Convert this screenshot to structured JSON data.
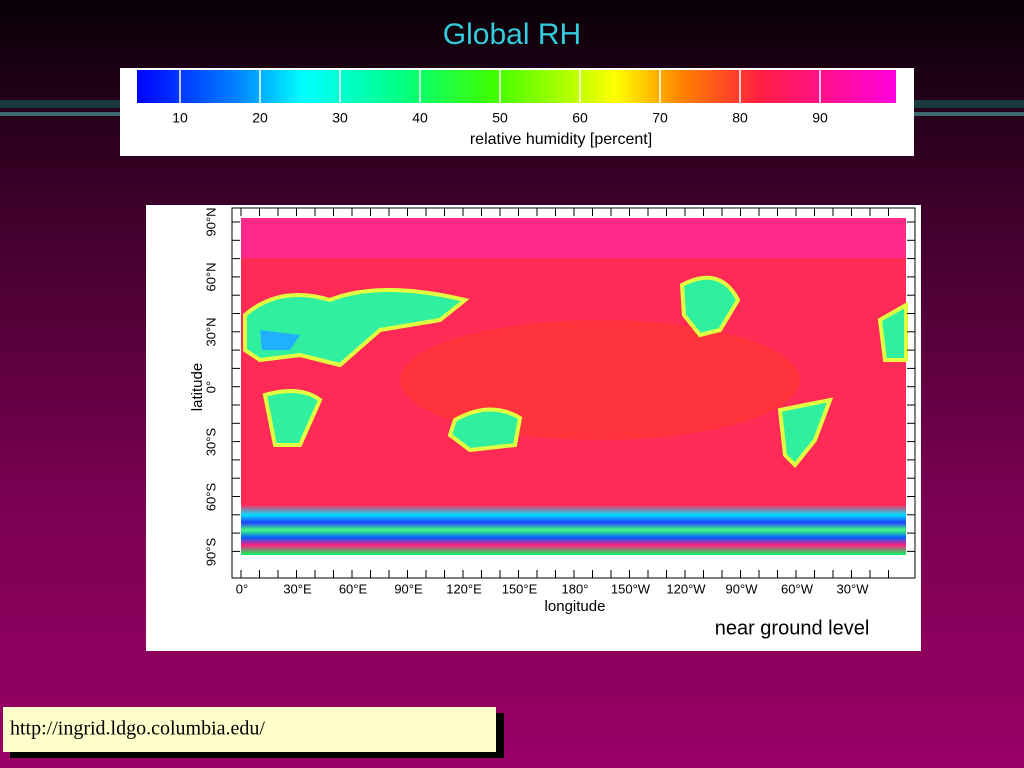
{
  "title": "Global RH",
  "colorbar": {
    "ticks": [
      10,
      20,
      30,
      40,
      50,
      60,
      70,
      80,
      90
    ],
    "label": "relative humidity [percent]"
  },
  "map": {
    "y_label": "latitude",
    "x_label": "longitude",
    "lat_ticks": [
      "90°N",
      "60°N",
      "30°N",
      "0°",
      "30°S",
      "60°S",
      "90°S"
    ],
    "lon_ticks": [
      "0°",
      "30°E",
      "60°E",
      "90°E",
      "120°E",
      "150°E",
      "180°",
      "150°W",
      "120°W",
      "90°W",
      "60°W",
      "30°W"
    ],
    "caption": "near ground level"
  },
  "footer": {
    "url": "http://ingrid.ldgo.columbia.edu/"
  }
}
